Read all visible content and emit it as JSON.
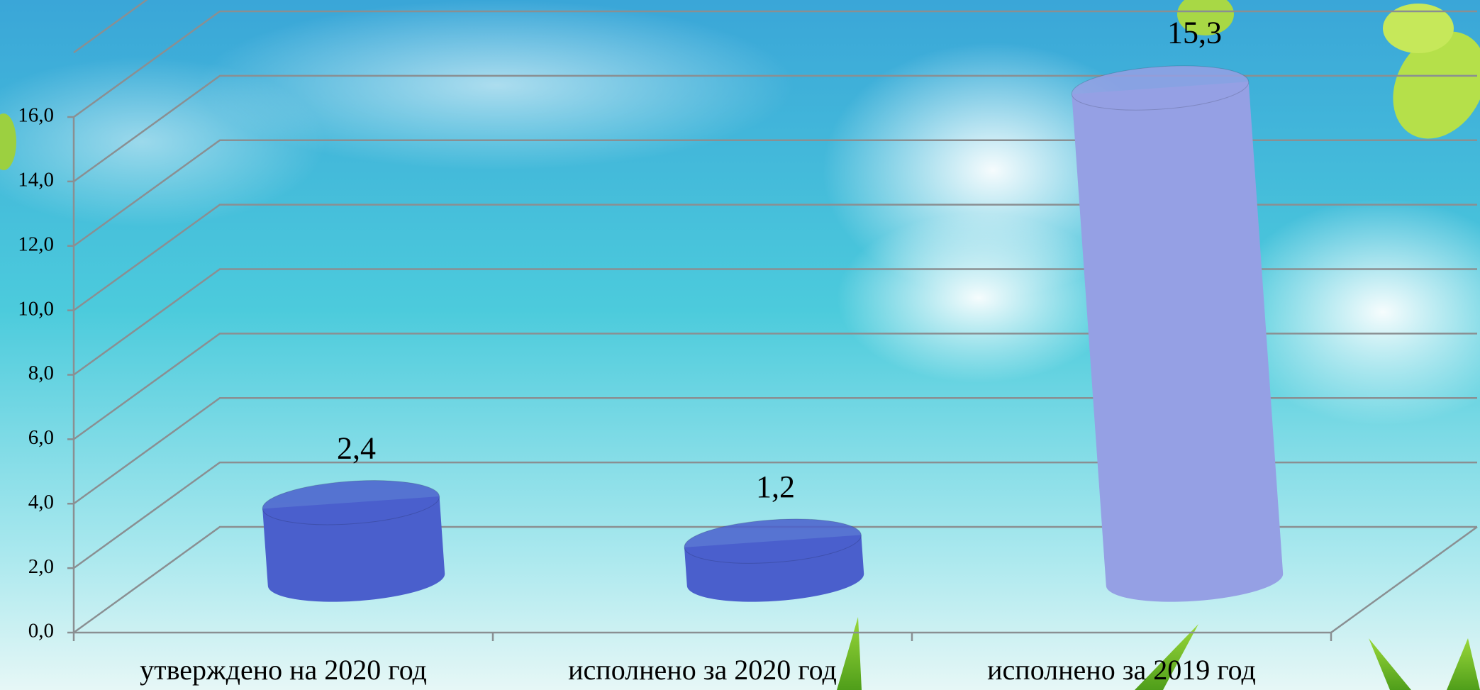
{
  "chart_data": {
    "type": "bar3d",
    "categories": [
      "утверждено на 2020 год",
      "исполнено за 2020 год",
      "исполнено за 2019 год"
    ],
    "values": [
      2.4,
      1.2,
      15.3
    ],
    "value_labels": [
      "2,4",
      "1,2",
      "15,3"
    ],
    "colors": [
      "#4a5fcc",
      "#4a5fcc",
      "#95a0e4"
    ],
    "ylim": [
      0,
      18
    ],
    "yticks": [
      {
        "value": 0,
        "label": "0,0"
      },
      {
        "value": 2,
        "label": "2,0"
      },
      {
        "value": 4,
        "label": "4,0"
      },
      {
        "value": 6,
        "label": "6,0"
      },
      {
        "value": 8,
        "label": "8,0"
      },
      {
        "value": 10,
        "label": "10,0"
      },
      {
        "value": 12,
        "label": "12,0"
      },
      {
        "value": 14,
        "label": "14,0"
      },
      {
        "value": 16,
        "label": "16,0"
      }
    ],
    "grid": true
  }
}
